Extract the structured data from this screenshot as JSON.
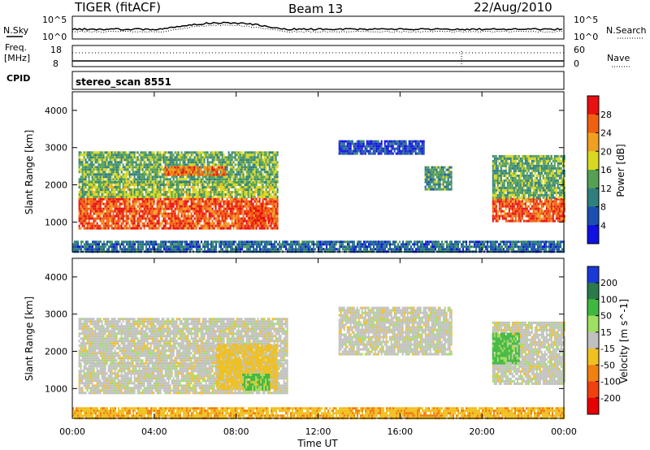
{
  "header": {
    "station": "TIGER (fitACF)",
    "beam": "Beam 13",
    "date": "22/Aug/2010"
  },
  "top_panels": {
    "nsky_label": "N.Sky",
    "nsearch_label": "N.Search",
    "nsky_ticks": [
      "10^5",
      "10^0"
    ],
    "nsearch_ticks": [
      "10^5",
      "10^0"
    ],
    "freq_label": "Freq.",
    "freq_unit": "[MHz]",
    "freq_ticks": [
      "18",
      "8"
    ],
    "nave_label": "Nave",
    "nave_ticks": [
      "60",
      "0"
    ],
    "cpid_label": "CPID",
    "cpid_value": "stereo_scan 8551"
  },
  "chart_data": [
    {
      "type": "heatmap",
      "title": "",
      "xlabel": "Time UT",
      "ylabel": "Slant Range [km]",
      "x_ticks": [
        "00:00",
        "04:00",
        "08:00",
        "12:00",
        "16:00",
        "20:00",
        "00:00"
      ],
      "xlim_hours": [
        0,
        24
      ],
      "y_ticks": [
        1000,
        2000,
        3000,
        4000
      ],
      "ylim": [
        200,
        4500
      ],
      "colorbar": {
        "label": "Power [dB]",
        "ticks": [
          4,
          8,
          12,
          16,
          20,
          24,
          28
        ],
        "range": [
          0,
          32
        ],
        "colors": [
          "#1010e0",
          "#1c4fb0",
          "#2f7f7f",
          "#55a055",
          "#d8d820",
          "#f0a020",
          "#f06010",
          "#e81010"
        ]
      },
      "regions": [
        {
          "t": [
            0.3,
            10.0
          ],
          "r": [
            850,
            1650
          ],
          "value": 27
        },
        {
          "t": [
            0.3,
            10.0
          ],
          "r": [
            1650,
            2100
          ],
          "value": 16
        },
        {
          "t": [
            0.3,
            10.0
          ],
          "r": [
            2100,
            2900
          ],
          "value": 14
        },
        {
          "t": [
            4.5,
            7.5
          ],
          "r": [
            2300,
            2500
          ],
          "value": 25
        },
        {
          "t": [
            8.6,
            9.6
          ],
          "r": [
            950,
            1400
          ],
          "value": 28
        },
        {
          "t": [
            13.0,
            17.2
          ],
          "r": [
            2850,
            3200
          ],
          "value": 5
        },
        {
          "t": [
            17.2,
            18.5
          ],
          "r": [
            1900,
            2500
          ],
          "value": 12
        },
        {
          "t": [
            20.5,
            24.0
          ],
          "r": [
            1050,
            1650
          ],
          "value": 27
        },
        {
          "t": [
            20.5,
            24.0
          ],
          "r": [
            1650,
            2800
          ],
          "value": 14
        },
        {
          "t": [
            0.0,
            24.0
          ],
          "r": [
            200,
            500
          ],
          "value": 8
        }
      ]
    },
    {
      "type": "heatmap",
      "title": "",
      "xlabel": "Time UT",
      "ylabel": "Slant Range [km]",
      "x_ticks": [
        "00:00",
        "04:00",
        "08:00",
        "12:00",
        "16:00",
        "20:00",
        "00:00"
      ],
      "xlim_hours": [
        0,
        24
      ],
      "y_ticks": [
        1000,
        2000,
        3000,
        4000
      ],
      "ylim": [
        200,
        4500
      ],
      "colorbar": {
        "label": "Velocity [m s^-1]",
        "ticks": [
          200,
          100,
          50,
          15,
          -15,
          -50,
          -100,
          -200
        ],
        "colors": [
          "#1a3ad8",
          "#2a7a4a",
          "#3fb83f",
          "#9ee060",
          "#c0c0c0",
          "#f0c020",
          "#f08010",
          "#f04010",
          "#e80000"
        ]
      },
      "regions": [
        {
          "t": [
            0.3,
            10.5
          ],
          "r": [
            900,
            1700
          ],
          "value": 0
        },
        {
          "t": [
            0.3,
            10.5
          ],
          "r": [
            1700,
            2900
          ],
          "value": 0
        },
        {
          "t": [
            7.0,
            10.0
          ],
          "r": [
            1000,
            2200
          ],
          "value": -30
        },
        {
          "t": [
            8.3,
            9.6
          ],
          "r": [
            1000,
            1400
          ],
          "value": 60
        },
        {
          "t": [
            13.0,
            18.5
          ],
          "r": [
            1900,
            3200
          ],
          "value": 0
        },
        {
          "t": [
            20.5,
            24.0
          ],
          "r": [
            1100,
            2800
          ],
          "value": 0
        },
        {
          "t": [
            20.5,
            21.8
          ],
          "r": [
            1700,
            2500
          ],
          "value": 60
        },
        {
          "t": [
            0.0,
            24.0
          ],
          "r": [
            200,
            500
          ],
          "value": -40
        }
      ]
    }
  ]
}
